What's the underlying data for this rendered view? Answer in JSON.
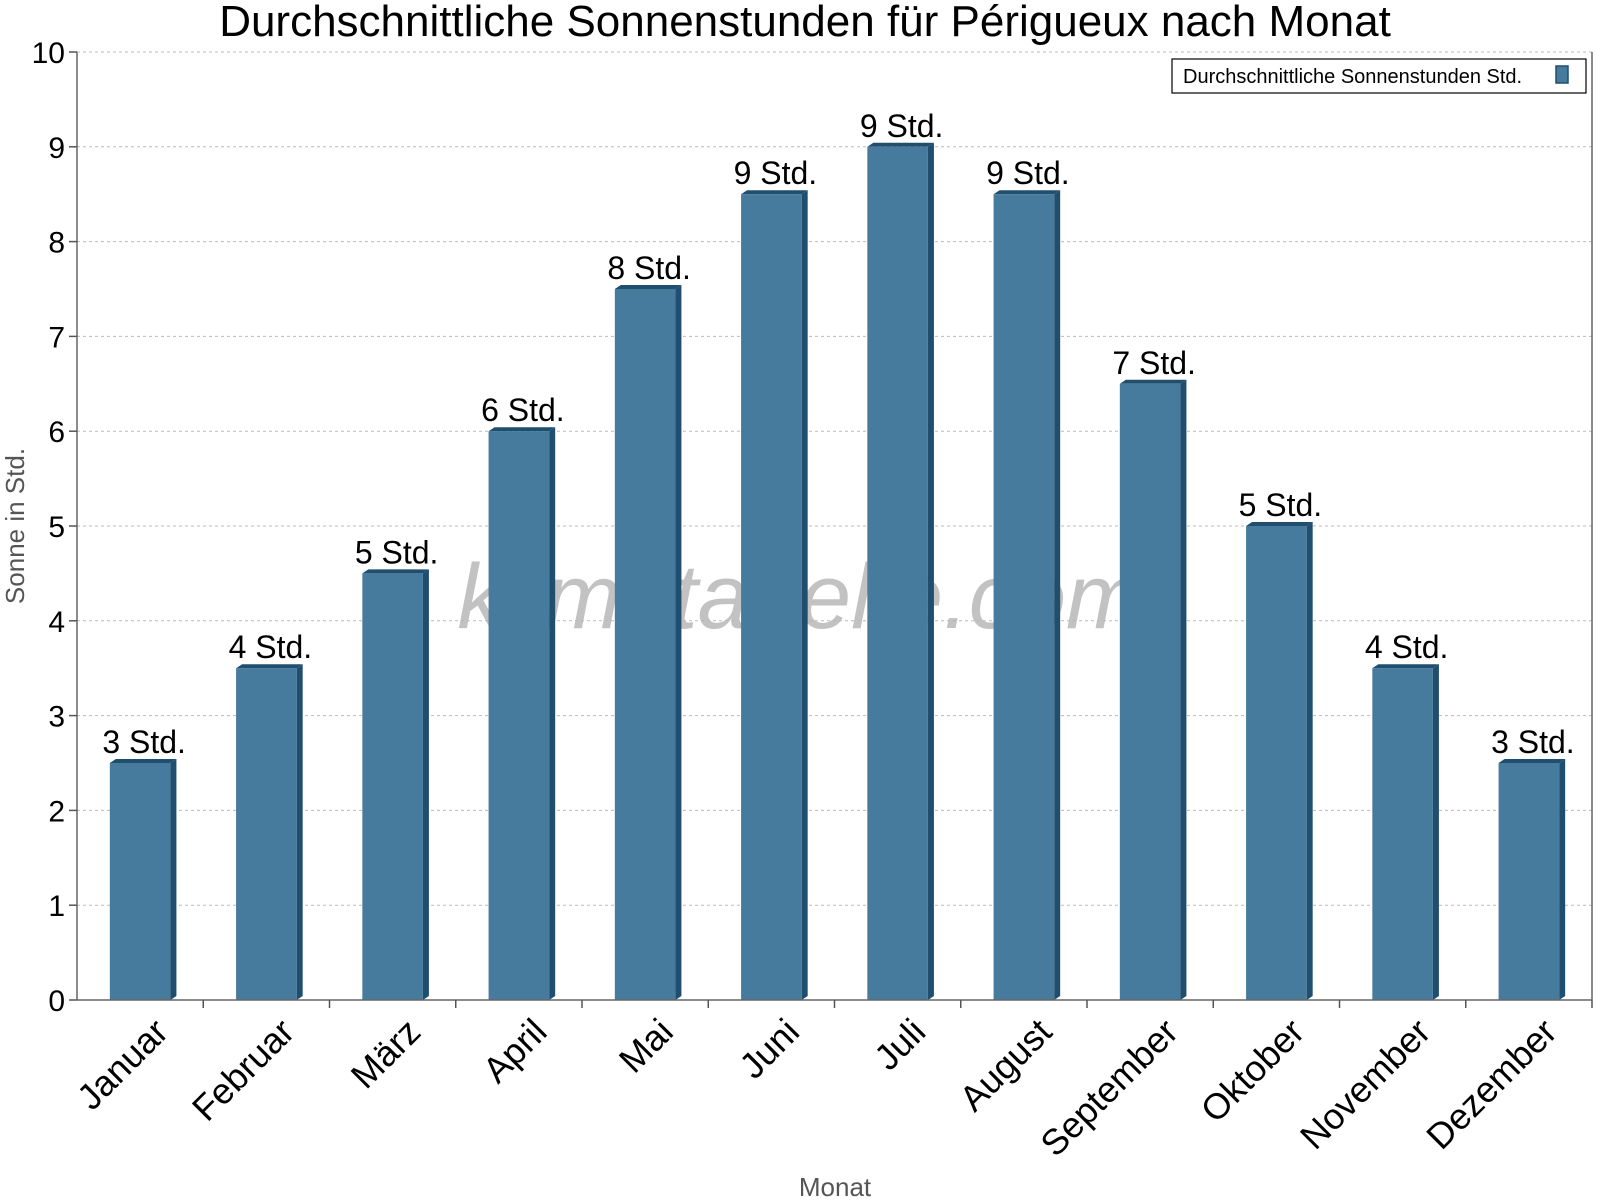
{
  "chart_data": {
    "type": "bar",
    "title": "Durchschnittliche Sonnenstunden für Périgueux nach Monat",
    "xlabel": "Monat",
    "ylabel": "Sonne in Std.",
    "ylim": [
      0,
      10
    ],
    "yticks": [
      0,
      1,
      2,
      3,
      4,
      5,
      6,
      7,
      8,
      9,
      10
    ],
    "grid": true,
    "legend_position": "top-right",
    "categories": [
      "Januar",
      "Februar",
      "März",
      "April",
      "Mai",
      "Juni",
      "Juli",
      "August",
      "September",
      "Oktober",
      "November",
      "Dezember"
    ],
    "series": [
      {
        "name": "Durchschnittliche Sonnenstunden Std.",
        "values": [
          2.5,
          3.5,
          4.5,
          6,
          7.5,
          8.5,
          9,
          8.5,
          6.5,
          5,
          3.5,
          2.5
        ],
        "labels": [
          "3 Std.",
          "4 Std.",
          "5 Std.",
          "6 Std.",
          "8 Std.",
          "9 Std.",
          "9 Std.",
          "9 Std.",
          "7 Std.",
          "5 Std.",
          "4 Std.",
          "3 Std."
        ],
        "color": "#467b9d",
        "side_color": "#1f4e6e"
      }
    ],
    "watermark": "klimatabelle.com"
  }
}
